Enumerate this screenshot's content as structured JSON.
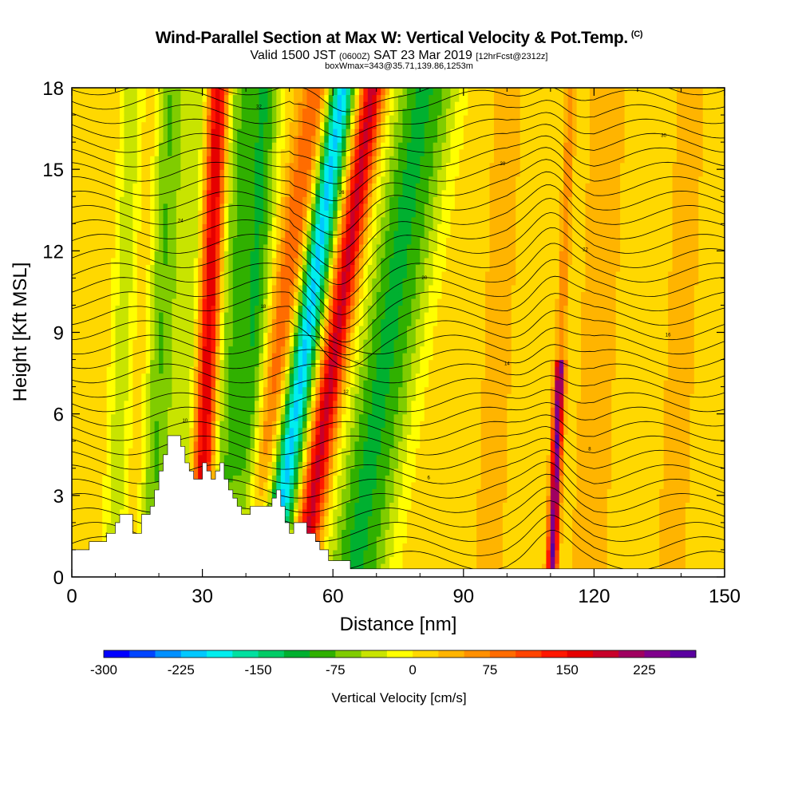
{
  "header": {
    "title": "Wind-Parallel Section at Max W: Vertical Velocity & Pot.Temp.",
    "copyright_mark": "(C)",
    "valid_prefix": "Valid 1500 JST",
    "valid_zulu": "(0600Z)",
    "valid_date": "SAT 23 Mar 2019",
    "forecast_tag": "[12hrFcst@2312z]",
    "box_info": "boxWmax=343@35.71,139.86,1253m"
  },
  "chart_data": {
    "type": "heatmap",
    "xlabel": "Distance [nm]",
    "ylabel": "Height [Kft MSL]",
    "xlim": [
      0,
      150
    ],
    "ylim": [
      0,
      18
    ],
    "x_ticks": [
      0,
      30,
      60,
      90,
      120,
      150
    ],
    "y_ticks": [
      0,
      3,
      6,
      9,
      12,
      15,
      18
    ],
    "colorbar": {
      "label": "Vertical Velocity [cm/s]",
      "tick_labels": [
        -300,
        -225,
        -150,
        -75,
        0,
        75,
        150,
        225
      ],
      "min": -300,
      "max": 250,
      "step": 25,
      "colors": [
        "#0000ff",
        "#0045ff",
        "#0090ff",
        "#00c8ff",
        "#00eeee",
        "#00e0a0",
        "#00cc66",
        "#00b030",
        "#30b000",
        "#80cc00",
        "#c8e400",
        "#ffff00",
        "#ffd800",
        "#ffb400",
        "#ff9000",
        "#ff6c00",
        "#ff4400",
        "#ff1800",
        "#e60000",
        "#c8002a",
        "#a00060",
        "#80008c",
        "#5a00a0"
      ]
    },
    "velocity_bands": [
      {
        "x": 2,
        "w": 2,
        "v": 0
      },
      {
        "x": 8,
        "w": 2.5,
        "v": 30
      },
      {
        "x": 12,
        "w": 3,
        "v": -70
      },
      {
        "x": 16,
        "w": 2.5,
        "v": 55
      },
      {
        "x": 20,
        "w": 2.5,
        "v": -95
      },
      {
        "x": 27,
        "w": 2.5,
        "v": -60
      },
      {
        "x": 31.5,
        "w": 1.8,
        "v": 190
      },
      {
        "x": 36,
        "w": 2.5,
        "v": -80
      },
      {
        "x": 42,
        "w": 2.5,
        "v": -110
      },
      {
        "x": 48,
        "w": 2.5,
        "v": 90
      },
      {
        "x": 54,
        "w": 2.2,
        "v": -220
      },
      {
        "x": 61,
        "w": 2.0,
        "v": 175
      },
      {
        "x": 72,
        "w": 4,
        "v": -110
      },
      {
        "x": 78,
        "w": 3,
        "v": -40
      },
      {
        "x": 98,
        "w": 3,
        "v": 25
      },
      {
        "x": 112.5,
        "w": 0.8,
        "v": 240
      },
      {
        "x": 121,
        "w": 3,
        "v": 35
      },
      {
        "x": 140,
        "w": 4,
        "v": 20
      }
    ],
    "terrain": [
      [
        0,
        1.0
      ],
      [
        4,
        1.0
      ],
      [
        4,
        1.3
      ],
      [
        8,
        1.3
      ],
      [
        8,
        1.6
      ],
      [
        10,
        1.6
      ],
      [
        10,
        2.0
      ],
      [
        11,
        2.0
      ],
      [
        11,
        2.3
      ],
      [
        14,
        2.3
      ],
      [
        14,
        1.6
      ],
      [
        16,
        1.6
      ],
      [
        16,
        2.3
      ],
      [
        18,
        2.3
      ],
      [
        18,
        2.6
      ],
      [
        19,
        2.6
      ],
      [
        19,
        3.2
      ],
      [
        20,
        3.2
      ],
      [
        20,
        3.9
      ],
      [
        21,
        3.9
      ],
      [
        21,
        4.5
      ],
      [
        22,
        4.5
      ],
      [
        22,
        5.2
      ],
      [
        25,
        5.2
      ],
      [
        25,
        4.8
      ],
      [
        26,
        4.8
      ],
      [
        26,
        4.2
      ],
      [
        27,
        4.2
      ],
      [
        27,
        3.9
      ],
      [
        28,
        3.9
      ],
      [
        28,
        3.6
      ],
      [
        30,
        3.6
      ],
      [
        30,
        4.2
      ],
      [
        31,
        4.2
      ],
      [
        31,
        3.9
      ],
      [
        32,
        3.9
      ],
      [
        32,
        3.6
      ],
      [
        33,
        3.6
      ],
      [
        33,
        3.9
      ],
      [
        34,
        3.9
      ],
      [
        34,
        4.2
      ],
      [
        35,
        4.2
      ],
      [
        35,
        3.6
      ],
      [
        36,
        3.6
      ],
      [
        36,
        3.2
      ],
      [
        37,
        3.2
      ],
      [
        37,
        2.9
      ],
      [
        38,
        2.9
      ],
      [
        38,
        2.6
      ],
      [
        39,
        2.6
      ],
      [
        39,
        2.3
      ],
      [
        41,
        2.3
      ],
      [
        41,
        2.6
      ],
      [
        46,
        2.6
      ],
      [
        46,
        2.9
      ],
      [
        47,
        2.9
      ],
      [
        47,
        3.2
      ],
      [
        48,
        3.2
      ],
      [
        48,
        2.6
      ],
      [
        49,
        2.6
      ],
      [
        49,
        2.0
      ],
      [
        50,
        2.0
      ],
      [
        50,
        1.6
      ],
      [
        51,
        1.6
      ],
      [
        51,
        2.0
      ],
      [
        54,
        2.0
      ],
      [
        54,
        1.6
      ],
      [
        56,
        1.6
      ],
      [
        56,
        1.3
      ],
      [
        57,
        1.3
      ],
      [
        57,
        1.0
      ],
      [
        59,
        1.0
      ],
      [
        59,
        0.6
      ],
      [
        64,
        0.6
      ],
      [
        64,
        0.3
      ],
      [
        150,
        0.3
      ],
      [
        150,
        0
      ]
    ],
    "isentrope_labels": [
      "2",
      "4",
      "6",
      "8",
      "10",
      "12",
      "14",
      "16",
      "18",
      "20",
      "22",
      "24",
      "26",
      "28",
      "30",
      "32"
    ]
  }
}
